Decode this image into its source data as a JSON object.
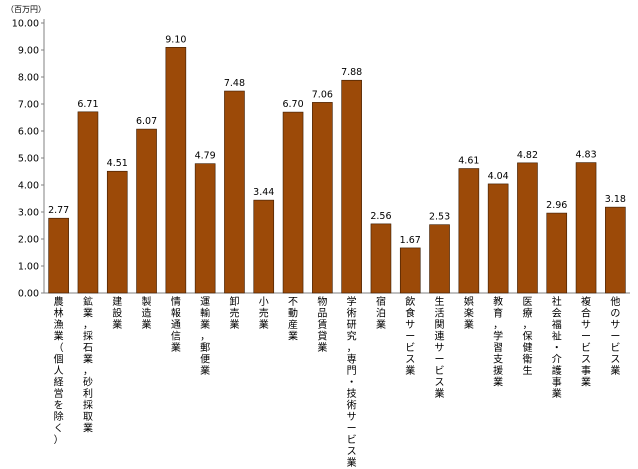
{
  "chart_data": {
    "type": "bar",
    "unit_label": "（百万円）",
    "ylim": [
      0,
      10
    ],
    "yticks": [
      "0.00",
      "1.00",
      "2.00",
      "3.00",
      "4.00",
      "5.00",
      "6.00",
      "7.00",
      "8.00",
      "9.00",
      "10.00"
    ],
    "grid": false,
    "bar_color": "#9C4A08",
    "categories": [
      "農林漁業（個人経営を除く）",
      "鉱業，採石業，砂利採取業",
      "建設業",
      "製造業",
      "情報通信業",
      "運輸業，郵便業",
      "卸売業",
      "小売業",
      "不動産業",
      "物品賃貸業",
      "学術研究，専門・技術サービス業",
      "宿泊業",
      "飲食サービス業",
      "生活関連サービス業",
      "娯楽業",
      "教育，学習支援業",
      "医療，保健衛生",
      "社会福祉・介護事業",
      "複合サービス事業",
      "他のサービス業"
    ],
    "values": [
      2.77,
      6.71,
      4.51,
      6.07,
      9.1,
      4.79,
      7.48,
      3.44,
      6.7,
      7.06,
      7.88,
      2.56,
      1.67,
      2.53,
      4.61,
      4.04,
      4.82,
      2.96,
      4.83,
      3.18
    ],
    "value_labels": [
      "2.77",
      "6.71",
      "4.51",
      "6.07",
      "9.10",
      "4.79",
      "7.48",
      "3.44",
      "6.70",
      "7.06",
      "7.88",
      "2.56",
      "1.67",
      "2.53",
      "4.61",
      "4.04",
      "4.82",
      "2.96",
      "4.83",
      "3.18"
    ]
  }
}
